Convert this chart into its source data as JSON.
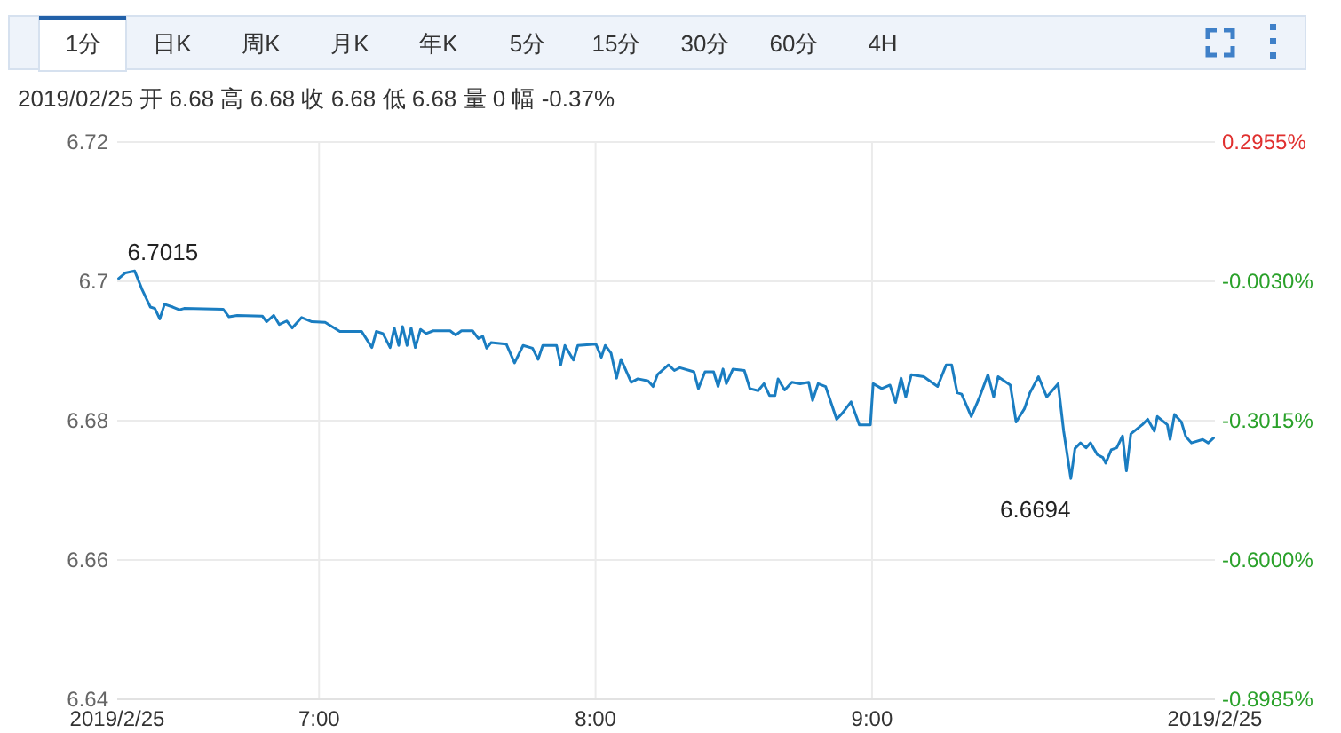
{
  "chart_data": {
    "type": "line",
    "subtitle": "2019/02/25 开 6.68 高 6.68 收 6.68 低 6.68 量 0 幅 -0.37%",
    "annotations": [
      "1分",
      "日K",
      "周K",
      "月K",
      "年K",
      "5分",
      "15分",
      "30分",
      "60分",
      "4H",
      {
        "text": "6.7015",
        "x": 6.333,
        "y": 6.7015
      },
      {
        "text": "6.6694",
        "x": 9.719,
        "y": 6.6717
      }
    ],
    "series": [
      {
        "color": "#1a7dc1",
        "x": [
          6.275,
          6.299,
          6.333,
          6.36,
          6.39,
          6.406,
          6.424,
          6.441,
          6.471,
          6.495,
          6.512,
          6.653,
          6.674,
          6.704,
          6.795,
          6.81,
          6.836,
          6.856,
          6.883,
          6.903,
          6.937,
          6.974,
          7.022,
          7.075,
          7.154,
          7.191,
          7.207,
          7.231,
          7.257,
          7.272,
          7.288,
          7.302,
          7.318,
          7.333,
          7.348,
          7.367,
          7.387,
          7.413,
          7.474,
          7.494,
          7.515,
          7.555,
          7.576,
          7.592,
          7.606,
          7.622,
          7.677,
          7.707,
          7.738,
          7.772,
          7.792,
          7.809,
          7.859,
          7.874,
          7.889,
          7.92,
          7.936,
          8.001,
          8.021,
          8.035,
          8.056,
          8.076,
          8.092,
          8.129,
          8.153,
          8.19,
          8.208,
          8.224,
          8.264,
          8.285,
          8.305,
          8.356,
          8.372,
          8.396,
          8.427,
          8.443,
          8.461,
          8.473,
          8.497,
          8.538,
          8.558,
          8.588,
          8.609,
          8.629,
          8.649,
          8.66,
          8.684,
          8.71,
          8.74,
          8.771,
          8.785,
          8.805,
          8.832,
          8.872,
          8.893,
          8.924,
          8.954,
          8.994,
          9.004,
          9.035,
          9.065,
          9.085,
          9.105,
          9.122,
          9.142,
          9.187,
          9.237,
          9.268,
          9.288,
          9.308,
          9.324,
          9.359,
          9.389,
          9.419,
          9.44,
          9.456,
          9.5,
          9.521,
          9.551,
          9.571,
          9.602,
          9.632,
          9.673,
          9.693,
          9.719,
          9.734,
          9.754,
          9.774,
          9.79,
          9.815,
          9.835,
          9.845,
          9.865,
          9.885,
          9.906,
          9.92,
          9.936,
          9.977,
          9.997,
          10.021,
          10.032,
          10.068,
          10.078,
          10.094,
          10.119,
          10.135,
          10.155,
          10.196,
          10.216,
          10.235
        ],
        "values": [
          6.7004,
          6.7012,
          6.7015,
          6.6988,
          6.6963,
          6.6961,
          6.6946,
          6.6967,
          6.6963,
          6.6959,
          6.6961,
          6.696,
          6.6949,
          6.6951,
          6.695,
          6.6942,
          6.6951,
          6.6938,
          6.6943,
          6.6933,
          6.6948,
          6.6942,
          6.6941,
          6.6928,
          6.6928,
          6.6905,
          6.6928,
          6.6925,
          6.6905,
          6.6933,
          6.6908,
          6.6935,
          6.6908,
          6.6933,
          6.6905,
          6.6931,
          6.6925,
          6.6929,
          6.6929,
          6.6923,
          6.6929,
          6.6929,
          6.6918,
          6.6921,
          6.6904,
          6.6912,
          6.691,
          6.6883,
          6.6908,
          6.6904,
          6.6888,
          6.6908,
          6.6908,
          6.688,
          6.6908,
          6.6887,
          6.6908,
          6.691,
          6.6891,
          6.6908,
          6.6897,
          6.6861,
          6.6888,
          6.6855,
          6.686,
          6.6857,
          6.6849,
          6.6866,
          6.688,
          6.6872,
          6.6876,
          6.687,
          6.6846,
          6.687,
          6.687,
          6.6849,
          6.6874,
          6.6853,
          6.6874,
          6.6872,
          6.6846,
          6.6843,
          6.6853,
          6.6836,
          6.6836,
          6.686,
          6.6844,
          6.6855,
          6.6853,
          6.6855,
          6.6829,
          6.6853,
          6.6849,
          6.6802,
          6.6811,
          6.6827,
          6.6794,
          6.6794,
          6.6853,
          6.6846,
          6.6851,
          6.6826,
          6.6861,
          6.6834,
          6.6866,
          6.6863,
          6.6849,
          6.688,
          6.688,
          6.684,
          6.6838,
          6.6806,
          6.6834,
          6.6866,
          6.6834,
          6.6863,
          6.6851,
          6.6798,
          6.6817,
          6.684,
          6.6863,
          6.6834,
          6.6853,
          6.6785,
          6.6717,
          6.676,
          6.6768,
          6.6761,
          6.6768,
          6.6751,
          6.6747,
          6.6739,
          6.6758,
          6.6761,
          6.6778,
          6.6728,
          6.6781,
          6.6794,
          6.6802,
          6.6785,
          6.6806,
          6.6794,
          6.6773,
          6.6809,
          6.6798,
          6.6777,
          6.6768,
          6.6773,
          6.6768,
          6.6775
        ]
      }
    ],
    "xlim": [
      6.27,
      10.24
    ],
    "xticks": [
      {
        "value": 6.27,
        "label": "2019/2/25"
      },
      {
        "value": 7,
        "label": "7:00"
      },
      {
        "value": 8,
        "label": "8:00"
      },
      {
        "value": 9,
        "label": "9:00"
      },
      {
        "value": 10.24,
        "label": "2019/2/25"
      }
    ],
    "ylim": [
      6.64,
      6.72
    ],
    "yticks": [
      6.64,
      6.66,
      6.68,
      6.7,
      6.72
    ],
    "y2lim": [
      -0.8985,
      0.2955
    ],
    "y2ticks": [
      {
        "value": -0.8985,
        "label": "-0.8985%"
      },
      {
        "value": -0.6,
        "label": "-0.6000%"
      },
      {
        "value": -0.3015,
        "label": "-0.3015%"
      },
      {
        "value": -0.003,
        "label": "-0.0030%"
      },
      {
        "value": 0.2955,
        "label": "0.2955%"
      }
    ],
    "grid": true
  }
}
